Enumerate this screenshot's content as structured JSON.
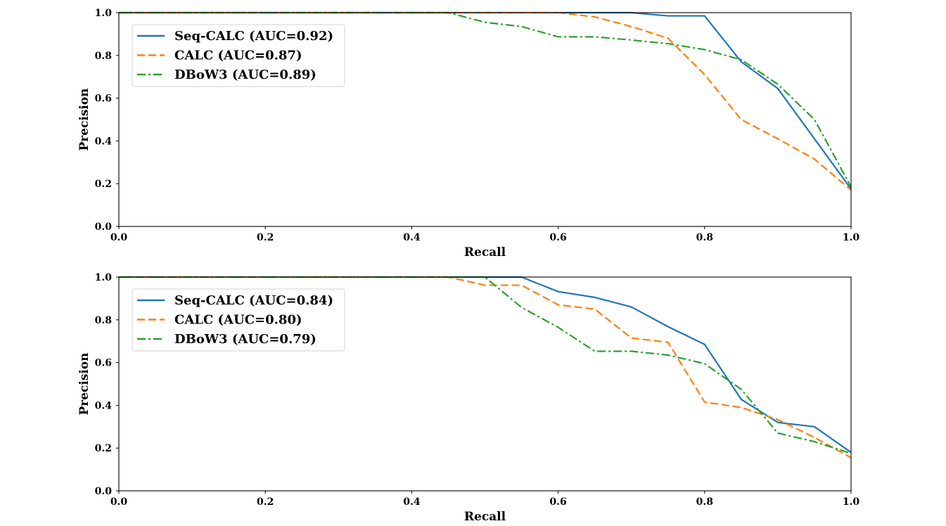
{
  "chart_data": [
    {
      "type": "line",
      "title": "",
      "xlabel": "Recall",
      "ylabel": "Precision",
      "xlim": [
        0,
        1
      ],
      "ylim": [
        0,
        1
      ],
      "xticks": [
        "0.0",
        "0.2",
        "0.4",
        "0.6",
        "0.8",
        "1.0"
      ],
      "yticks": [
        "0.0",
        "0.2",
        "0.4",
        "0.6",
        "0.8",
        "1.0"
      ],
      "grid": false,
      "legend_position": "upper-left",
      "series": [
        {
          "name": "Seq-CALC (AUC=0.92)",
          "color": "#1f77b4",
          "dash": "solid",
          "points": [
            [
              0,
              1.0
            ],
            [
              0.05,
              1.0
            ],
            [
              0.1,
              1.0
            ],
            [
              0.15,
              1.0
            ],
            [
              0.2,
              1.0
            ],
            [
              0.25,
              1.0
            ],
            [
              0.3,
              1.0
            ],
            [
              0.35,
              1.0
            ],
            [
              0.4,
              1.0
            ],
            [
              0.45,
              1.0
            ],
            [
              0.5,
              1.0
            ],
            [
              0.55,
              1.0
            ],
            [
              0.6,
              1.0
            ],
            [
              0.65,
              1.0
            ],
            [
              0.7,
              1.0
            ],
            [
              0.75,
              0.985
            ],
            [
              0.8,
              0.985
            ],
            [
              0.85,
              0.77
            ],
            [
              0.9,
              0.645
            ],
            [
              0.95,
              0.41
            ],
            [
              1.0,
              0.175
            ]
          ]
        },
        {
          "name": "CALC (AUC=0.87)",
          "color": "#ff7f0e",
          "dash": "dashed",
          "points": [
            [
              0,
              1.0
            ],
            [
              0.05,
              1.0
            ],
            [
              0.1,
              1.0
            ],
            [
              0.15,
              1.0
            ],
            [
              0.2,
              1.0
            ],
            [
              0.25,
              1.0
            ],
            [
              0.3,
              1.0
            ],
            [
              0.35,
              1.0
            ],
            [
              0.4,
              1.0
            ],
            [
              0.45,
              1.0
            ],
            [
              0.5,
              1.0
            ],
            [
              0.55,
              1.0
            ],
            [
              0.6,
              1.0
            ],
            [
              0.65,
              0.98
            ],
            [
              0.7,
              0.935
            ],
            [
              0.75,
              0.88
            ],
            [
              0.8,
              0.71
            ],
            [
              0.85,
              0.5
            ],
            [
              0.9,
              0.41
            ],
            [
              0.95,
              0.315
            ],
            [
              1.0,
              0.17
            ]
          ]
        },
        {
          "name": "DBoW3 (AUC=0.89)",
          "color": "#2ca02c",
          "dash": "dashdot",
          "points": [
            [
              0,
              1.0
            ],
            [
              0.05,
              1.0
            ],
            [
              0.1,
              1.0
            ],
            [
              0.15,
              1.0
            ],
            [
              0.2,
              1.0
            ],
            [
              0.25,
              1.0
            ],
            [
              0.3,
              1.0
            ],
            [
              0.35,
              1.0
            ],
            [
              0.4,
              1.0
            ],
            [
              0.45,
              1.0
            ],
            [
              0.5,
              0.955
            ],
            [
              0.55,
              0.935
            ],
            [
              0.6,
              0.887
            ],
            [
              0.65,
              0.887
            ],
            [
              0.7,
              0.872
            ],
            [
              0.75,
              0.855
            ],
            [
              0.8,
              0.827
            ],
            [
              0.85,
              0.78
            ],
            [
              0.9,
              0.665
            ],
            [
              0.95,
              0.5
            ],
            [
              1.0,
              0.185
            ]
          ]
        }
      ]
    },
    {
      "type": "line",
      "title": "",
      "xlabel": "Recall",
      "ylabel": "Precision",
      "xlim": [
        0,
        1
      ],
      "ylim": [
        0,
        1
      ],
      "xticks": [
        "0.0",
        "0.2",
        "0.4",
        "0.6",
        "0.8",
        "1.0"
      ],
      "yticks": [
        "0.0",
        "0.2",
        "0.4",
        "0.6",
        "0.8",
        "1.0"
      ],
      "grid": false,
      "legend_position": "upper-left",
      "series": [
        {
          "name": "Seq-CALC (AUC=0.84)",
          "color": "#1f77b4",
          "dash": "solid",
          "points": [
            [
              0,
              1.0
            ],
            [
              0.05,
              1.0
            ],
            [
              0.1,
              1.0
            ],
            [
              0.15,
              1.0
            ],
            [
              0.2,
              1.0
            ],
            [
              0.25,
              1.0
            ],
            [
              0.3,
              1.0
            ],
            [
              0.35,
              1.0
            ],
            [
              0.4,
              1.0
            ],
            [
              0.45,
              1.0
            ],
            [
              0.5,
              1.0
            ],
            [
              0.55,
              1.0
            ],
            [
              0.6,
              0.932
            ],
            [
              0.65,
              0.905
            ],
            [
              0.7,
              0.86
            ],
            [
              0.75,
              0.768
            ],
            [
              0.8,
              0.685
            ],
            [
              0.85,
              0.428
            ],
            [
              0.9,
              0.32
            ],
            [
              0.95,
              0.3
            ],
            [
              1.0,
              0.18
            ]
          ]
        },
        {
          "name": "CALC (AUC=0.80)",
          "color": "#ff7f0e",
          "dash": "dashed",
          "points": [
            [
              0,
              1.0
            ],
            [
              0.05,
              1.0
            ],
            [
              0.1,
              1.0
            ],
            [
              0.15,
              1.0
            ],
            [
              0.2,
              1.0
            ],
            [
              0.25,
              1.0
            ],
            [
              0.3,
              1.0
            ],
            [
              0.35,
              1.0
            ],
            [
              0.4,
              1.0
            ],
            [
              0.45,
              1.0
            ],
            [
              0.5,
              0.962
            ],
            [
              0.55,
              0.962
            ],
            [
              0.6,
              0.87
            ],
            [
              0.65,
              0.85
            ],
            [
              0.7,
              0.715
            ],
            [
              0.75,
              0.695
            ],
            [
              0.8,
              0.415
            ],
            [
              0.85,
              0.39
            ],
            [
              0.9,
              0.333
            ],
            [
              0.95,
              0.25
            ],
            [
              1.0,
              0.155
            ]
          ]
        },
        {
          "name": "DBoW3 (AUC=0.79)",
          "color": "#2ca02c",
          "dash": "dashdot",
          "points": [
            [
              0,
              1.0
            ],
            [
              0.05,
              1.0
            ],
            [
              0.1,
              1.0
            ],
            [
              0.15,
              1.0
            ],
            [
              0.2,
              1.0
            ],
            [
              0.25,
              1.0
            ],
            [
              0.3,
              1.0
            ],
            [
              0.35,
              1.0
            ],
            [
              0.4,
              1.0
            ],
            [
              0.45,
              1.0
            ],
            [
              0.5,
              1.0
            ],
            [
              0.55,
              0.858
            ],
            [
              0.6,
              0.765
            ],
            [
              0.65,
              0.653
            ],
            [
              0.7,
              0.653
            ],
            [
              0.75,
              0.635
            ],
            [
              0.8,
              0.595
            ],
            [
              0.85,
              0.475
            ],
            [
              0.9,
              0.27
            ],
            [
              0.95,
              0.23
            ],
            [
              1.0,
              0.175
            ]
          ]
        }
      ]
    }
  ]
}
